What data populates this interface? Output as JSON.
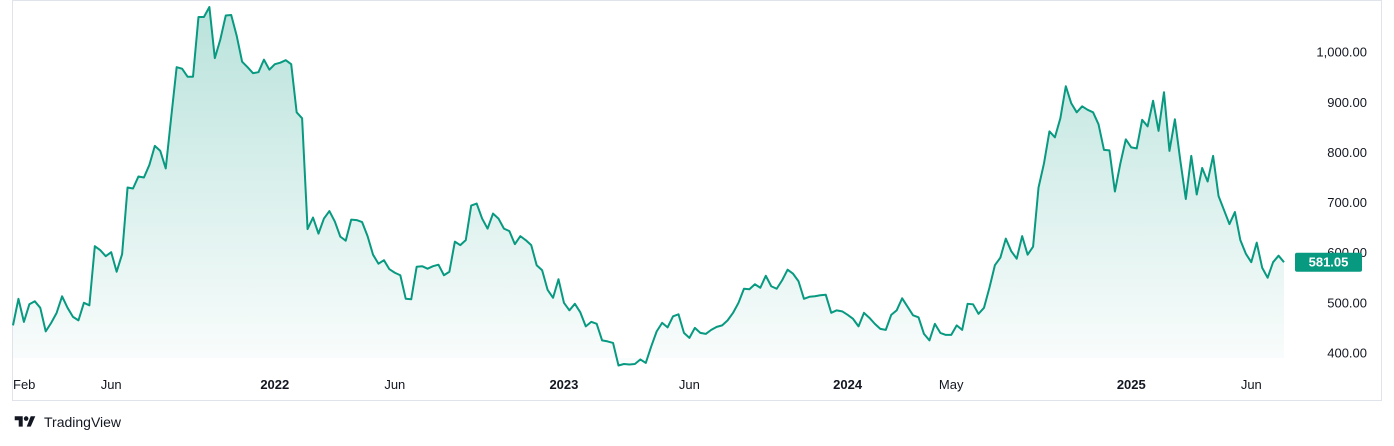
{
  "chart_data": {
    "type": "area",
    "series": [
      {
        "values": [
          455,
          508,
          462,
          497,
          503,
          490,
          443,
          460,
          480,
          513,
          490,
          472,
          465,
          500,
          495,
          613,
          605,
          593,
          601,
          562,
          597,
          730,
          728,
          752,
          750,
          775,
          813,
          803,
          768,
          870,
          970,
          967,
          951,
          951,
          1070,
          1070,
          1090,
          988,
          1025,
          1073,
          1074,
          1033,
          981,
          970,
          958,
          960,
          985,
          965,
          976,
          979,
          984,
          976,
          880,
          868,
          647,
          670,
          638,
          668,
          683,
          662,
          632,
          624,
          666,
          665,
          661,
          633,
          596,
          578,
          585,
          567,
          560,
          555,
          508,
          507,
          572,
          573,
          568,
          573,
          576,
          555,
          562,
          622,
          615,
          625,
          694,
          698,
          668,
          648,
          678,
          668,
          648,
          643,
          617,
          633,
          625,
          615,
          575,
          565,
          526,
          510,
          547,
          500,
          485,
          498,
          481,
          453,
          462,
          458,
          425,
          423,
          420,
          375,
          378,
          377,
          378,
          387,
          380,
          413,
          443,
          460,
          451,
          473,
          477,
          440,
          430,
          450,
          440,
          438,
          446,
          452,
          455,
          465,
          480,
          500,
          528,
          527,
          537,
          530,
          554,
          533,
          528,
          545,
          566,
          558,
          543,
          508,
          512,
          513,
          515,
          516,
          480,
          485,
          483,
          476,
          468,
          453,
          480,
          470,
          458,
          448,
          446,
          476,
          485,
          509,
          492,
          475,
          471,
          438,
          425,
          458,
          440,
          436,
          436,
          455,
          446,
          498,
          497,
          478,
          490,
          530,
          575,
          590,
          628,
          603,
          588,
          633,
          596,
          612,
          730,
          778,
          842,
          830,
          868,
          932,
          898,
          880,
          892,
          885,
          880,
          856,
          805,
          804,
          722,
          778,
          826,
          810,
          808,
          865,
          852,
          903,
          843,
          920,
          803,
          866,
          783,
          707,
          793,
          716,
          769,
          742,
          793,
          713,
          685,
          657,
          681,
          625,
          598,
          581,
          620,
          570,
          550,
          581,
          594,
          581
        ]
      }
    ],
    "yticks": [
      "400.00",
      "500.00",
      "600.00",
      "700.00",
      "800.00",
      "900.00",
      "1,000.00"
    ],
    "ytick_values": [
      400,
      500,
      600,
      700,
      800,
      900,
      1000
    ],
    "xticks": [
      {
        "label": "Feb",
        "bold": false,
        "index": 0
      },
      {
        "label": "Jun",
        "bold": false,
        "index": 18
      },
      {
        "label": "2022",
        "bold": true,
        "index": 48
      },
      {
        "label": "Jun",
        "bold": false,
        "index": 70
      },
      {
        "label": "2023",
        "bold": true,
        "index": 101
      },
      {
        "label": "Jun",
        "bold": false,
        "index": 124
      },
      {
        "label": "2024",
        "bold": true,
        "index": 153
      },
      {
        "label": "May",
        "bold": false,
        "index": 172
      },
      {
        "label": "2025",
        "bold": true,
        "index": 205
      },
      {
        "label": "Jun",
        "bold": false,
        "index": 227
      }
    ],
    "last_value": 581.05,
    "last_value_label": "581.05",
    "ylim": [
      360,
      1100
    ],
    "line_color": "#089981",
    "fill_color": "#089981",
    "grid": false
  },
  "branding": {
    "name": "TradingView"
  }
}
